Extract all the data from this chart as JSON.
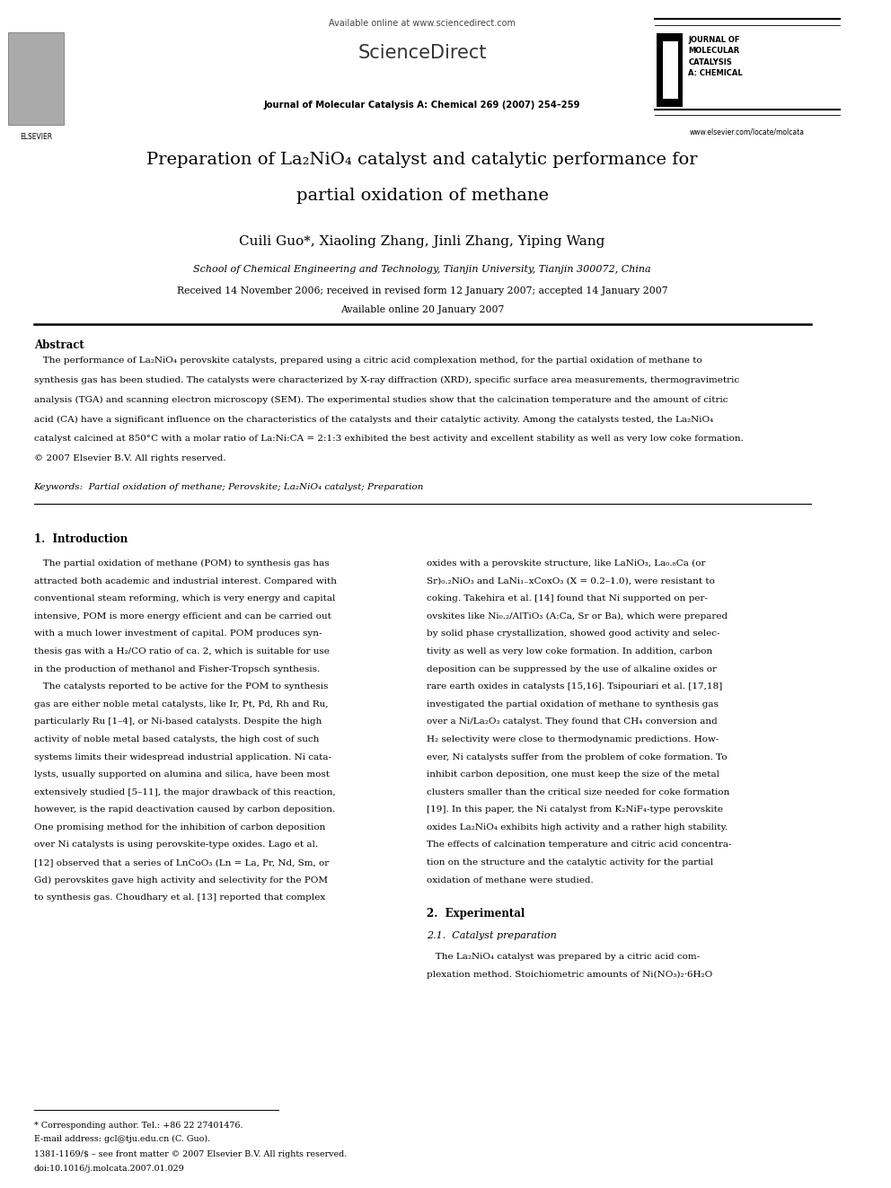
{
  "bg_color": "#ffffff",
  "page_width": 9.92,
  "page_height": 13.23,
  "header_available_online": "Available online at www.sciencedirect.com",
  "header_journal_line": "Journal of Molecular Catalysis A: Chemical 269 (2007) 254–259",
  "header_elsevier_text": "ELSEVIER",
  "header_journal_name_right": "JOURNAL OF\nMOLECULAR\nCATALYSIS\nA: CHEMICAL",
  "header_website": "www.elsevier.com/locate/molcata",
  "title_line1": "Preparation of La₂NiO₄ catalyst and catalytic performance for",
  "title_line2": "partial oxidation of methane",
  "authors": "Cuili Guo*, Xiaoling Zhang, Jinli Zhang, Yiping Wang",
  "affiliation": "School of Chemical Engineering and Technology, Tianjin University, Tianjin 300072, China",
  "received": "Received 14 November 2006; received in revised form 12 January 2007; accepted 14 January 2007",
  "available_online_date": "Available online 20 January 2007",
  "abstract_title": "Abstract",
  "abstract_lines": [
    "   The performance of La₂NiO₄ perovskite catalysts, prepared using a citric acid complexation method, for the partial oxidation of methane to",
    "synthesis gas has been studied. The catalysts were characterized by X-ray diffraction (XRD), specific surface area measurements, thermogravimetric",
    "analysis (TGA) and scanning electron microscopy (SEM). The experimental studies show that the calcination temperature and the amount of citric",
    "acid (CA) have a significant influence on the characteristics of the catalysts and their catalytic activity. Among the catalysts tested, the La₂NiO₄",
    "catalyst calcined at 850°C with a molar ratio of La:Ni:CA = 2:1:3 exhibited the best activity and excellent stability as well as very low coke formation.",
    "© 2007 Elsevier B.V. All rights reserved."
  ],
  "keywords": "Keywords:  Partial oxidation of methane; Perovskite; La₂NiO₄ catalyst; Preparation",
  "section1_title": "1.  Introduction",
  "col1_lines": [
    "   The partial oxidation of methane (POM) to synthesis gas has",
    "attracted both academic and industrial interest. Compared with",
    "conventional steam reforming, which is very energy and capital",
    "intensive, POM is more energy efficient and can be carried out",
    "with a much lower investment of capital. POM produces syn-",
    "thesis gas with a H₂/CO ratio of ca. 2, which is suitable for use",
    "in the production of methanol and Fisher-Tropsch synthesis.",
    "   The catalysts reported to be active for the POM to synthesis",
    "gas are either noble metal catalysts, like Ir, Pt, Pd, Rh and Ru,",
    "particularly Ru [1–4], or Ni-based catalysts. Despite the high",
    "activity of noble metal based catalysts, the high cost of such",
    "systems limits their widespread industrial application. Ni cata-",
    "lysts, usually supported on alumina and silica, have been most",
    "extensively studied [5–11], the major drawback of this reaction,",
    "however, is the rapid deactivation caused by carbon deposition.",
    "One promising method for the inhibition of carbon deposition",
    "over Ni catalysts is using perovskite-type oxides. Lago et al.",
    "[12] observed that a series of LnCoO₃ (Ln = La, Pr, Nd, Sm, or",
    "Gd) perovskites gave high activity and selectivity for the POM",
    "to synthesis gas. Choudhary et al. [13] reported that complex"
  ],
  "col2_lines": [
    "oxides with a perovskite structure, like LaNiO₃, La₀.₈Ca (or",
    "Sr)₀.₂NiO₃ and LaNi₁₋xCoxO₃ (X = 0.2–1.0), were resistant to",
    "coking. Takehira et al. [14] found that Ni supported on per-",
    "ovskites like Ni₀.₂/AlTiO₃ (A:Ca, Sr or Ba), which were prepared",
    "by solid phase crystallization, showed good activity and selec-",
    "tivity as well as very low coke formation. In addition, carbon",
    "deposition can be suppressed by the use of alkaline oxides or",
    "rare earth oxides in catalysts [15,16]. Tsipouriari et al. [17,18]",
    "investigated the partial oxidation of methane to synthesis gas",
    "over a Ni/La₂O₃ catalyst. They found that CH₄ conversion and",
    "H₂ selectivity were close to thermodynamic predictions. How-",
    "ever, Ni catalysts suffer from the problem of coke formation. To",
    "inhibit carbon deposition, one must keep the size of the metal",
    "clusters smaller than the critical size needed for coke formation",
    "[19]. In this paper, the Ni catalyst from K₂NiF₄-type perovskite",
    "oxides La₂NiO₄ exhibits high activity and a rather high stability.",
    "The effects of calcination temperature and citric acid concentra-",
    "tion on the structure and the catalytic activity for the partial",
    "oxidation of methane were studied."
  ],
  "section2_title": "2.  Experimental",
  "section2_sub": "2.1.  Catalyst preparation",
  "section2_text_lines": [
    "   The La₂NiO₄ catalyst was prepared by a citric acid com-",
    "plexation method. Stoichiometric amounts of Ni(NO₃)₂·6H₂O"
  ],
  "footnote_star": "* Corresponding author. Tel.: +86 22 27401476.",
  "footnote_email": "E-mail address: gcl@tju.edu.cn (C. Guo).",
  "footer_issn": "1381-1169/$ – see front matter © 2007 Elsevier B.V. All rights reserved.",
  "footer_doi": "doi:10.1016/j.molcata.2007.01.029"
}
